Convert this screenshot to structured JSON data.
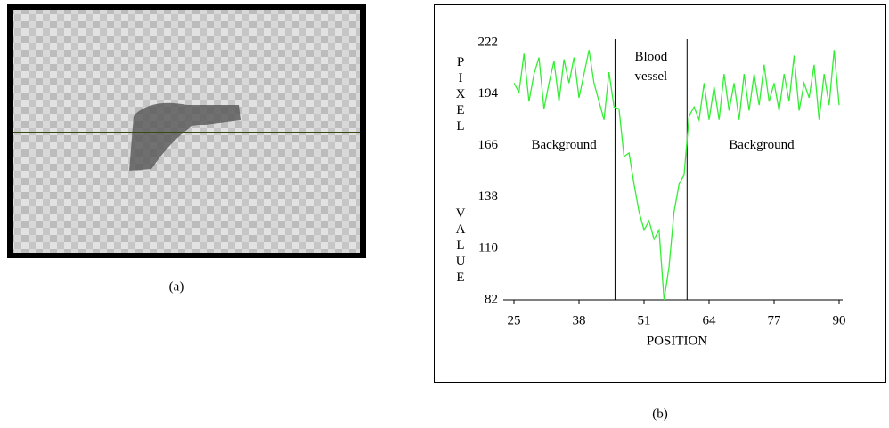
{
  "captions": [
    "(a)",
    "(b)"
  ],
  "chart_data": {
    "type": "line",
    "ylabel": [
      "PIXEL",
      "VALUE"
    ],
    "xlabel": "POSITION",
    "x": [
      25,
      26,
      27,
      28,
      29,
      30,
      31,
      32,
      33,
      34,
      35,
      36,
      37,
      38,
      39,
      40,
      41,
      42,
      43,
      44,
      45,
      46,
      47,
      48,
      49,
      50,
      51,
      52,
      53,
      54,
      55,
      56,
      57,
      58,
      59,
      60,
      61,
      62,
      63,
      64,
      65,
      66,
      67,
      68,
      69,
      70,
      71,
      72,
      73,
      74,
      75,
      76,
      77,
      78,
      79,
      80,
      81,
      82,
      83,
      84,
      85,
      86,
      87,
      88,
      89,
      90
    ],
    "series": [
      {
        "color": "#33ee33",
        "values": [
          200,
          195,
          216,
          190,
          205,
          214,
          186,
          200,
          212,
          190,
          213,
          200,
          214,
          192,
          205,
          218,
          200,
          190,
          180,
          206,
          187,
          186,
          160,
          162,
          145,
          130,
          120,
          125,
          115,
          120,
          82,
          100,
          130,
          145,
          150,
          182,
          187,
          180,
          200,
          180,
          198,
          180,
          205,
          185,
          200,
          180,
          205,
          185,
          205,
          188,
          210,
          190,
          200,
          185,
          205,
          190,
          215,
          185,
          200,
          192,
          210,
          180,
          205,
          188,
          218,
          188
        ]
      }
    ],
    "xlim": [
      25,
      90
    ],
    "ylim": [
      82,
      222
    ],
    "xticks": [
      25,
      38,
      51,
      64,
      77,
      90
    ],
    "yticks": [
      82,
      110,
      138,
      166,
      194,
      222
    ],
    "vlines": [
      45.2,
      59.6
    ],
    "annotations": [
      {
        "lines": [
          "Blood",
          "vessel"
        ],
        "x": 52.4,
        "y": 214
      },
      {
        "lines": [
          "Background"
        ],
        "x": 35,
        "y": 166
      },
      {
        "lines": [
          "Background"
        ],
        "x": 74.5,
        "y": 166
      }
    ]
  }
}
